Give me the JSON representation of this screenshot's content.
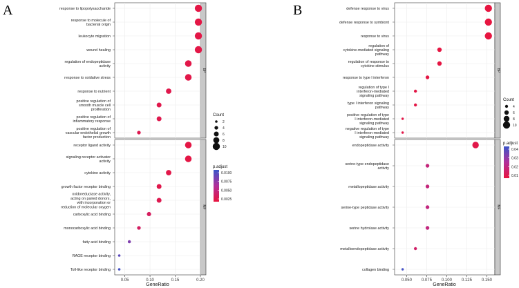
{
  "chart_data": [
    {
      "type": "scatter",
      "panel_label": "A",
      "xlabel": "GeneRatio",
      "xlim": [
        0.03,
        0.2
      ],
      "xticks": [
        0.05,
        0.1,
        0.15,
        0.2
      ],
      "xtick_labels": [
        "0.05",
        "0.10",
        "0.15",
        "0.20"
      ],
      "size_legend": {
        "title": "Count",
        "values": [
          2,
          4,
          6,
          8,
          10
        ],
        "labels": [
          "2",
          "4",
          "6",
          "8",
          "10"
        ]
      },
      "color_legend": {
        "title": "p.adjust",
        "labels": [
          "0.0100",
          "0.0075",
          "0.0050",
          "0.0025"
        ],
        "colors": [
          "#3a55c9",
          "#e8143e"
        ]
      },
      "facets": [
        {
          "strip": "BP",
          "terms": [
            {
              "label": [
                "response to lipopolysaccharide"
              ],
              "x": 0.196,
              "count": 10,
              "padj": 0.0004
            },
            {
              "label": [
                "response to molecule of",
                "bacterial origin"
              ],
              "x": 0.196,
              "count": 10,
              "padj": 0.0004
            },
            {
              "label": [
                "leukocyte migration"
              ],
              "x": 0.196,
              "count": 10,
              "padj": 0.0005
            },
            {
              "label": [
                "wound healing"
              ],
              "x": 0.196,
              "count": 10,
              "padj": 0.0005
            },
            {
              "label": [
                "regulation of endopeptidase",
                "activity"
              ],
              "x": 0.176,
              "count": 9,
              "padj": 0.0006
            },
            {
              "label": [
                "response to oxidative stress"
              ],
              "x": 0.176,
              "count": 9,
              "padj": 0.0006
            },
            {
              "label": [
                "response to nutrient"
              ],
              "x": 0.137,
              "count": 7,
              "padj": 0.0008
            },
            {
              "label": [
                "positive regulation of",
                "smooth muscle cell",
                "proliferation"
              ],
              "x": 0.118,
              "count": 6,
              "padj": 0.0008
            },
            {
              "label": [
                "positive regulation of",
                "inflammatory response"
              ],
              "x": 0.118,
              "count": 6,
              "padj": 0.0009
            },
            {
              "label": [
                "positive regulation of",
                "vascular endothelial growth",
                "factor production"
              ],
              "x": 0.078,
              "count": 4,
              "padj": 0.001
            }
          ]
        },
        {
          "strip": "MF",
          "terms": [
            {
              "label": [
                "receptor ligand activity"
              ],
              "x": 0.176,
              "count": 9,
              "padj": 0.0004
            },
            {
              "label": [
                "signaling receptor activator",
                "activity"
              ],
              "x": 0.176,
              "count": 9,
              "padj": 0.0004
            },
            {
              "label": [
                "cytokine activity"
              ],
              "x": 0.137,
              "count": 7,
              "padj": 0.0006
            },
            {
              "label": [
                "growth factor receptor binding"
              ],
              "x": 0.118,
              "count": 6,
              "padj": 0.0008
            },
            {
              "label": [
                "oxidoreductase activity,",
                "acting on paired donors,",
                "with incorporation or",
                "reduction of molecular oxygen"
              ],
              "x": 0.118,
              "count": 6,
              "padj": 0.001
            },
            {
              "label": [
                "carboxylic acid binding"
              ],
              "x": 0.098,
              "count": 5,
              "padj": 0.0018
            },
            {
              "label": [
                "monocarboxylic acid binding"
              ],
              "x": 0.078,
              "count": 4,
              "padj": 0.002
            },
            {
              "label": [
                "fatty acid binding"
              ],
              "x": 0.059,
              "count": 3,
              "padj": 0.0075
            },
            {
              "label": [
                "RAGE receptor binding"
              ],
              "x": 0.039,
              "count": 2,
              "padj": 0.009
            },
            {
              "label": [
                "Toll-like receptor binding"
              ],
              "x": 0.039,
              "count": 2,
              "padj": 0.01
            }
          ]
        }
      ]
    },
    {
      "type": "scatter",
      "panel_label": "B",
      "xlabel": "GeneRatio",
      "xlim": [
        0.035,
        0.16
      ],
      "xticks": [
        0.05,
        0.075,
        0.1,
        0.125,
        0.15
      ],
      "xtick_labels": [
        "0.050",
        "0.075",
        "0.100",
        "0.125",
        "0.150"
      ],
      "size_legend": {
        "title": "Count",
        "values": [
          4,
          6,
          8,
          10
        ],
        "labels": [
          "4",
          "6",
          "8",
          "10"
        ]
      },
      "color_legend": {
        "title": "p.adjust",
        "labels": [
          "0.04",
          "0.03",
          "0.02",
          "0.01"
        ],
        "colors": [
          "#3a55c9",
          "#e8143e"
        ]
      },
      "facets": [
        {
          "strip": "BP",
          "terms": [
            {
              "label": [
                "defense response to virus"
              ],
              "x": 0.152,
              "count": 10,
              "padj": 0.0005
            },
            {
              "label": [
                "defense response to symbiont"
              ],
              "x": 0.152,
              "count": 10,
              "padj": 0.0005
            },
            {
              "label": [
                "response to virus"
              ],
              "x": 0.152,
              "count": 10,
              "padj": 0.0006
            },
            {
              "label": [
                "regulation of",
                "cytokine-mediated signaling",
                "pathway"
              ],
              "x": 0.091,
              "count": 6,
              "padj": 0.001
            },
            {
              "label": [
                "regulation of response to",
                "cytokine stimulus"
              ],
              "x": 0.091,
              "count": 6,
              "padj": 0.0012
            },
            {
              "label": [
                "response to type I interferon"
              ],
              "x": 0.076,
              "count": 5,
              "padj": 0.0015
            },
            {
              "label": [
                "regulation of type I",
                "interferon-mediated",
                "signaling pathway"
              ],
              "x": 0.061,
              "count": 4,
              "padj": 0.002
            },
            {
              "label": [
                "type I interferon signaling",
                "pathway"
              ],
              "x": 0.061,
              "count": 4,
              "padj": 0.002
            },
            {
              "label": [
                "positive regulation of type",
                "I interferon-mediated",
                "signaling pathway"
              ],
              "x": 0.045,
              "count": 3,
              "padj": 0.0025
            },
            {
              "label": [
                "negative regulation of type",
                "I interferon-mediated",
                "signaling pathway"
              ],
              "x": 0.045,
              "count": 3,
              "padj": 0.0025
            }
          ]
        },
        {
          "strip": "MF",
          "terms": [
            {
              "label": [
                "endopeptidase activity"
              ],
              "x": 0.136,
              "count": 9,
              "padj": 0.003
            },
            {
              "label": [
                "serine-type endopeptidase",
                "activity"
              ],
              "x": 0.076,
              "count": 5,
              "padj": 0.015
            },
            {
              "label": [
                "metallopeptidase activity"
              ],
              "x": 0.076,
              "count": 5,
              "padj": 0.015
            },
            {
              "label": [
                "serine-type peptidase activity"
              ],
              "x": 0.076,
              "count": 5,
              "padj": 0.016
            },
            {
              "label": [
                "serine hydrolase activity"
              ],
              "x": 0.076,
              "count": 5,
              "padj": 0.016
            },
            {
              "label": [
                "metalloendopeptidase activity"
              ],
              "x": 0.061,
              "count": 4,
              "padj": 0.01
            },
            {
              "label": [
                "collagen binding"
              ],
              "x": 0.045,
              "count": 3,
              "padj": 0.043
            }
          ]
        }
      ]
    }
  ]
}
